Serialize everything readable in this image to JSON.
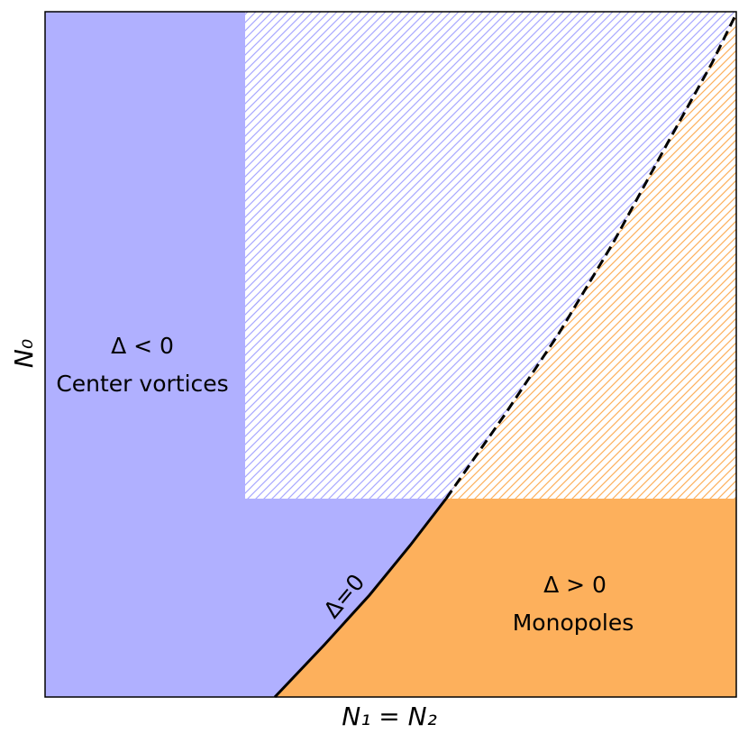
{
  "axes": {
    "x_label": "N₁ = N₂",
    "y_label": "N₀"
  },
  "regions": [
    {
      "symbol": "Δ < 0",
      "label": "Center vortices"
    },
    {
      "symbol": "Δ > 0",
      "label": "Monopoles"
    }
  ],
  "boundary_label": "Δ=0"
}
